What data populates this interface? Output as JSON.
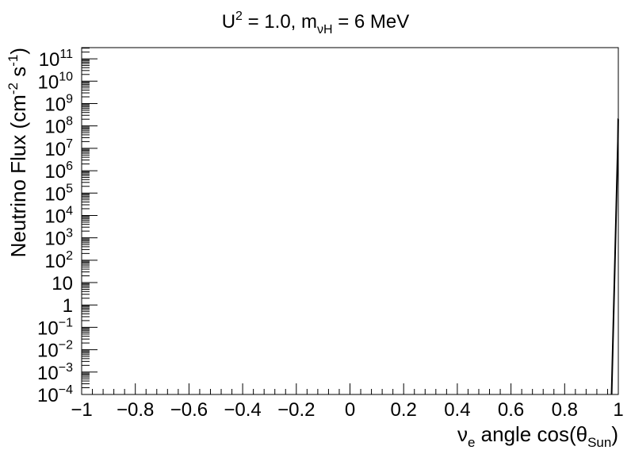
{
  "chart_data": {
    "type": "line",
    "title": {
      "main_u": "U",
      "main_u_sup": "2",
      "main_mid": " = 1.0, m",
      "main_m_sub": "νH",
      "main_end": " = 6 MeV"
    },
    "xlabel": {
      "nu": "ν",
      "nu_sub": "e",
      "text": " angle cos(θ",
      "theta_sub": "Sun",
      "close": ")"
    },
    "ylabel": {
      "text": "Neutrino Flux (cm",
      "sup1": "-2",
      "mid": " s",
      "sup2": "-1",
      "close": ")"
    },
    "xlim": [
      -1,
      1
    ],
    "ylim_log10": [
      -4,
      11.5
    ],
    "log_y": true,
    "grid": false,
    "xticks": [
      {
        "value": -1,
        "label": "−1"
      },
      {
        "value": -0.8,
        "label": "−0.8"
      },
      {
        "value": -0.6,
        "label": "−0.6"
      },
      {
        "value": -0.4,
        "label": "−0.4"
      },
      {
        "value": -0.2,
        "label": "−0.2"
      },
      {
        "value": 0,
        "label": "0"
      },
      {
        "value": 0.2,
        "label": "0.2"
      },
      {
        "value": 0.4,
        "label": "0.4"
      },
      {
        "value": 0.6,
        "label": "0.6"
      },
      {
        "value": 0.8,
        "label": "0.8"
      },
      {
        "value": 1,
        "label": "1"
      }
    ],
    "yticks": [
      {
        "exp": -4,
        "base": "10",
        "sup": "−4"
      },
      {
        "exp": -3,
        "base": "10",
        "sup": "−3"
      },
      {
        "exp": -2,
        "base": "10",
        "sup": "−2"
      },
      {
        "exp": -1,
        "base": "10",
        "sup": "−1"
      },
      {
        "exp": 0,
        "base": "1",
        "sup": ""
      },
      {
        "exp": 1,
        "base": "10",
        "sup": ""
      },
      {
        "exp": 2,
        "base": "10",
        "sup": "2"
      },
      {
        "exp": 3,
        "base": "10",
        "sup": "3"
      },
      {
        "exp": 4,
        "base": "10",
        "sup": "4"
      },
      {
        "exp": 5,
        "base": "10",
        "sup": "5"
      },
      {
        "exp": 6,
        "base": "10",
        "sup": "6"
      },
      {
        "exp": 7,
        "base": "10",
        "sup": "7"
      },
      {
        "exp": 8,
        "base": "10",
        "sup": "8"
      },
      {
        "exp": 9,
        "base": "10",
        "sup": "9"
      },
      {
        "exp": 10,
        "base": "10",
        "sup": "10"
      },
      {
        "exp": 11,
        "base": "10",
        "sup": "11"
      }
    ],
    "series": [
      {
        "color": "#000000",
        "points": [
          {
            "x": 0.975,
            "y": 0.0001
          },
          {
            "x": 0.9985,
            "y": 20000000
          },
          {
            "x": 0.9995,
            "y": 200000000
          },
          {
            "x": 1.0,
            "y": 200000000
          }
        ]
      }
    ]
  }
}
